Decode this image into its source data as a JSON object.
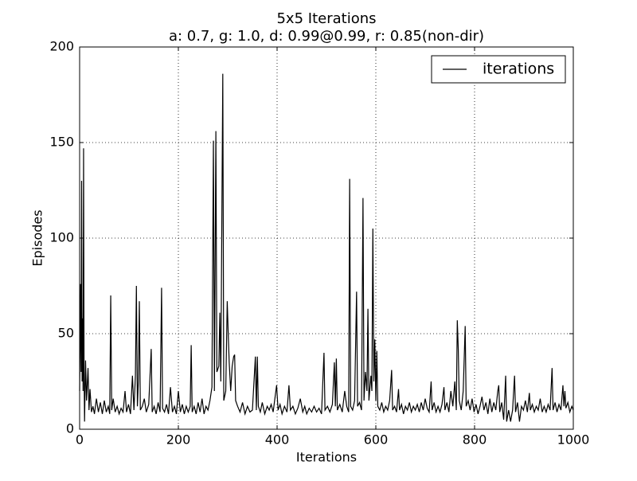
{
  "chart_data": {
    "type": "line",
    "title": "5x5 Iterations",
    "subtitle": "a: 0.7, g: 1.0, d: 0.99@0.99, r: 0.85(non-dir)",
    "xlabel": "Iterations",
    "ylabel": "Episodes",
    "xlim": [
      0,
      1000
    ],
    "xticks": [
      0,
      200,
      400,
      600,
      800,
      1000
    ],
    "ylim": [
      0,
      200
    ],
    "yticks": [
      0,
      50,
      100,
      150,
      200
    ],
    "grid": true,
    "legend": "upper right",
    "x": [
      0,
      2,
      3,
      4,
      5,
      6,
      7,
      8,
      9,
      10,
      12,
      14,
      17,
      19,
      21,
      24,
      27,
      30,
      34,
      38,
      42,
      46,
      50,
      54,
      58,
      61,
      63,
      65,
      68,
      72,
      76,
      80,
      84,
      88,
      92,
      95,
      99,
      103,
      107,
      110,
      113,
      115,
      117,
      119,
      121,
      123,
      127,
      131,
      135,
      140,
      145,
      147,
      151,
      155,
      159,
      163,
      166,
      168,
      172,
      176,
      180,
      184,
      188,
      192,
      196,
      200,
      204,
      208,
      212,
      216,
      220,
      224,
      226,
      228,
      232,
      236,
      240,
      244,
      248,
      252,
      256,
      260,
      264,
      268,
      271,
      273,
      276,
      278,
      282,
      284,
      286,
      290,
      292,
      296,
      299,
      301,
      303,
      306,
      309,
      312,
      314,
      316,
      320,
      325,
      330,
      335,
      340,
      345,
      350,
      356,
      358,
      360,
      362,
      366,
      370,
      375,
      380,
      384,
      388,
      392,
      399,
      402,
      406,
      410,
      415,
      420,
      424,
      427,
      432,
      437,
      442,
      447,
      452,
      456,
      460,
      465,
      470,
      475,
      480,
      485,
      490,
      495,
      497,
      502,
      507,
      512,
      516,
      518,
      520,
      522,
      527,
      532,
      537,
      541,
      545,
      547,
      549,
      553,
      557,
      561,
      563,
      567,
      571,
      574,
      576,
      579,
      582,
      584,
      586,
      590,
      592,
      594,
      596,
      598,
      600,
      602,
      604,
      608,
      612,
      616,
      620,
      624,
      628,
      632,
      634,
      638,
      642,
      646,
      648,
      652,
      656,
      660,
      664,
      668,
      672,
      676,
      680,
      684,
      688,
      692,
      696,
      700,
      704,
      708,
      712,
      714,
      718,
      722,
      726,
      730,
      734,
      738,
      740,
      744,
      748,
      752,
      756,
      760,
      763,
      765,
      767,
      769,
      773,
      777,
      781,
      783,
      787,
      791,
      795,
      799,
      803,
      807,
      811,
      815,
      819,
      823,
      827,
      831,
      835,
      839,
      843,
      847,
      849,
      851,
      855,
      859,
      863,
      865,
      869,
      873,
      877,
      881,
      883,
      887,
      891,
      895,
      899,
      903,
      907,
      911,
      913,
      917,
      921,
      925,
      929,
      933,
      937,
      941,
      945,
      949,
      953,
      957,
      959,
      963,
      967,
      971,
      975,
      979,
      981,
      983,
      985,
      989,
      993,
      997,
      1000
    ],
    "series": [
      {
        "name": "iterations",
        "color": "#000000",
        "values": [
          20,
          76,
          30,
          130,
          25,
          58,
          20,
          147,
          30,
          4,
          36,
          15,
          32,
          10,
          21,
          9,
          12,
          8,
          16,
          9,
          14,
          8,
          15,
          9,
          12,
          8,
          70,
          10,
          16,
          9,
          12,
          8,
          11,
          9,
          20,
          9,
          13,
          8,
          28,
          10,
          28,
          75,
          12,
          25,
          67,
          10,
          12,
          16,
          9,
          13,
          42,
          9,
          12,
          8,
          14,
          9,
          74,
          11,
          9,
          13,
          8,
          22,
          9,
          12,
          8,
          20,
          9,
          13,
          8,
          12,
          9,
          12,
          44,
          9,
          12,
          8,
          14,
          9,
          16,
          8,
          12,
          10,
          15,
          22,
          151,
          20,
          156,
          30,
          33,
          61,
          25,
          186,
          15,
          20,
          67,
          50,
          35,
          20,
          33,
          38,
          39,
          15,
          12,
          9,
          14,
          8,
          12,
          9,
          10,
          38,
          10,
          38,
          12,
          9,
          14,
          8,
          12,
          10,
          13,
          9,
          23,
          10,
          13,
          8,
          12,
          9,
          23,
          10,
          12,
          8,
          11,
          16,
          9,
          12,
          8,
          11,
          9,
          12,
          9,
          11,
          8,
          40,
          10,
          12,
          9,
          13,
          35,
          12,
          37,
          10,
          13,
          9,
          20,
          12,
          9,
          131,
          12,
          10,
          15,
          72,
          12,
          14,
          10,
          121,
          15,
          30,
          20,
          63,
          15,
          28,
          20,
          105,
          25,
          47,
          15,
          41,
          12,
          10,
          14,
          9,
          12,
          10,
          15,
          31,
          10,
          12,
          9,
          21,
          10,
          13,
          8,
          12,
          10,
          14,
          9,
          12,
          10,
          13,
          9,
          14,
          10,
          16,
          11,
          9,
          25,
          10,
          14,
          9,
          12,
          9,
          13,
          22,
          10,
          14,
          9,
          20,
          12,
          25,
          10,
          57,
          42,
          15,
          10,
          20,
          54,
          12,
          15,
          10,
          16,
          9,
          13,
          8,
          12,
          17,
          10,
          14,
          8,
          16,
          9,
          14,
          10,
          20,
          23,
          9,
          14,
          5,
          28,
          4,
          10,
          4,
          10,
          28,
          9,
          14,
          4,
          12,
          10,
          15,
          9,
          19,
          10,
          13,
          9,
          12,
          10,
          16,
          9,
          12,
          9,
          13,
          10,
          32,
          10,
          14,
          9,
          13,
          10,
          23,
          12,
          20,
          11,
          14,
          9,
          12,
          10
        ]
      }
    ]
  }
}
